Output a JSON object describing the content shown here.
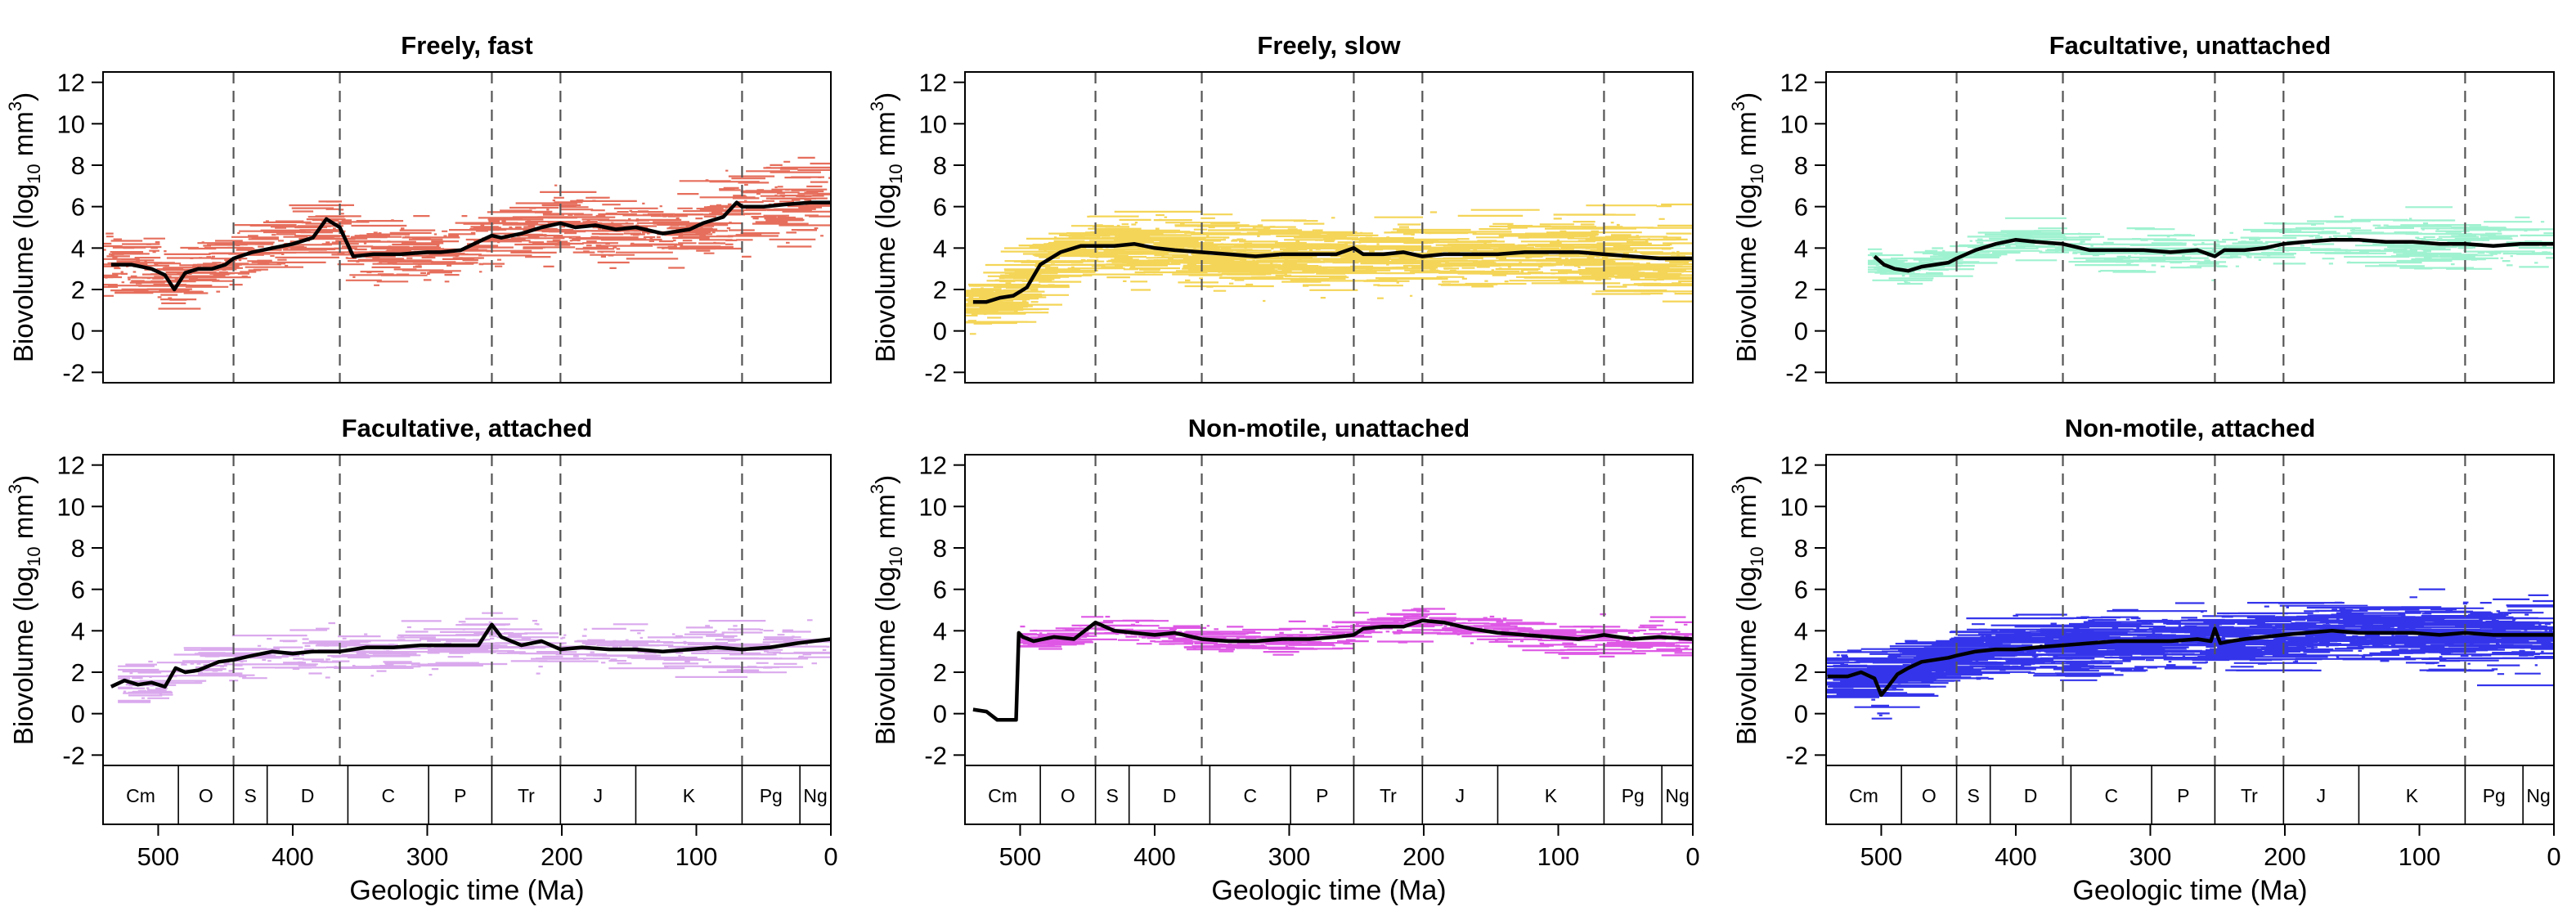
{
  "panels": [
    {
      "title": "Freely, fast",
      "color": "#E2553F"
    },
    {
      "title": "Freely, slow",
      "color": "#F2CE3A"
    },
    {
      "title": "Facultative, unattached",
      "color": "#8EF0C8"
    },
    {
      "title": "Facultative, attached",
      "color": "#D49AEA"
    },
    {
      "title": "Non-motile, unattached",
      "color": "#D83BE0"
    },
    {
      "title": "Non-motile, attached",
      "color": "#1010E8"
    }
  ],
  "ylabel_main": "Biovolume (log",
  "ylabel_sub": "10",
  "ylabel_unit": " mm",
  "ylabel_sup": "3",
  "ylabel_close": ")",
  "xlabel": "Geologic time (Ma)",
  "periods": [
    {
      "label": "Cm",
      "start": 541,
      "end": 485
    },
    {
      "label": "O",
      "start": 485,
      "end": 444
    },
    {
      "label": "S",
      "start": 444,
      "end": 419
    },
    {
      "label": "D",
      "start": 419,
      "end": 359
    },
    {
      "label": "C",
      "start": 359,
      "end": 299
    },
    {
      "label": "P",
      "start": 299,
      "end": 252
    },
    {
      "label": "Tr",
      "start": 252,
      "end": 201
    },
    {
      "label": "J",
      "start": 201,
      "end": 145
    },
    {
      "label": "K",
      "start": 145,
      "end": 66
    },
    {
      "label": "Pg",
      "start": 66,
      "end": 23
    },
    {
      "label": "Ng",
      "start": 23,
      "end": 0
    }
  ],
  "chart_data": [
    {
      "type": "line",
      "title": "Freely, fast",
      "xlabel": "Geologic time (Ma)",
      "ylabel": "Biovolume (log10 mm3)",
      "xlim": [
        541,
        0
      ],
      "ylim": [
        -2.5,
        12.5
      ],
      "yticks": [
        -2,
        0,
        2,
        4,
        6,
        8,
        10,
        12
      ],
      "xticks": [
        500,
        400,
        300,
        200,
        100,
        0
      ],
      "mass_extinctions": [
        444,
        365,
        252,
        201,
        66
      ],
      "series": [
        {
          "x": [
            535,
            520,
            505,
            495,
            488,
            480,
            470,
            460,
            450,
            444,
            430,
            415,
            400,
            385,
            375,
            365,
            355,
            340,
            320,
            300,
            290,
            275,
            262,
            252,
            245,
            230,
            215,
            201,
            190,
            175,
            160,
            145,
            125,
            105,
            95,
            80,
            70,
            66,
            50,
            35,
            15,
            0
          ],
          "y": [
            3.2,
            3.2,
            3.0,
            2.7,
            2.0,
            2.8,
            3.0,
            3.0,
            3.2,
            3.5,
            3.8,
            4.0,
            4.2,
            4.5,
            5.4,
            5.0,
            3.6,
            3.7,
            3.7,
            3.8,
            3.8,
            3.9,
            4.3,
            4.6,
            4.5,
            4.7,
            5.0,
            5.2,
            5.0,
            5.1,
            4.9,
            5.0,
            4.7,
            4.9,
            5.2,
            5.5,
            6.2,
            6.0,
            6.0,
            6.1,
            6.2,
            6.2
          ]
        }
      ]
    },
    {
      "type": "line",
      "title": "Freely, slow",
      "xlabel": "Geologic time (Ma)",
      "ylabel": "Biovolume (log10 mm3)",
      "xlim": [
        541,
        0
      ],
      "ylim": [
        -2.5,
        12.5
      ],
      "yticks": [
        -2,
        0,
        2,
        4,
        6,
        8,
        10,
        12
      ],
      "xticks": [
        500,
        400,
        300,
        200,
        100,
        0
      ],
      "mass_extinctions": [
        444,
        365,
        252,
        201,
        66
      ],
      "series": [
        {
          "x": [
            535,
            525,
            515,
            505,
            495,
            485,
            470,
            455,
            444,
            430,
            415,
            400,
            385,
            365,
            345,
            325,
            305,
            285,
            265,
            252,
            245,
            230,
            215,
            201,
            185,
            165,
            145,
            125,
            105,
            85,
            66,
            45,
            25,
            0
          ],
          "y": [
            1.4,
            1.4,
            1.6,
            1.7,
            2.1,
            3.2,
            3.8,
            4.1,
            4.1,
            4.1,
            4.2,
            4.0,
            3.9,
            3.8,
            3.7,
            3.6,
            3.7,
            3.7,
            3.7,
            4.0,
            3.7,
            3.7,
            3.8,
            3.6,
            3.7,
            3.7,
            3.7,
            3.8,
            3.8,
            3.8,
            3.7,
            3.6,
            3.5,
            3.5
          ]
        }
      ]
    },
    {
      "type": "line",
      "title": "Facultative, unattached",
      "xlabel": "Geologic time (Ma)",
      "ylabel": "Biovolume (log10 mm3)",
      "xlim": [
        541,
        0
      ],
      "ylim": [
        -2.5,
        12.5
      ],
      "yticks": [
        -2,
        0,
        2,
        4,
        6,
        8,
        10,
        12
      ],
      "xticks": [
        500,
        400,
        300,
        200,
        100,
        0
      ],
      "mass_extinctions": [
        444,
        365,
        252,
        201,
        66
      ],
      "series": [
        {
          "x": [
            505,
            498,
            490,
            480,
            470,
            460,
            450,
            444,
            430,
            415,
            400,
            385,
            365,
            345,
            325,
            305,
            285,
            265,
            252,
            245,
            230,
            215,
            201,
            185,
            165,
            145,
            125,
            105,
            85,
            66,
            45,
            25,
            0
          ],
          "y": [
            3.6,
            3.2,
            3.0,
            2.9,
            3.1,
            3.2,
            3.3,
            3.5,
            3.9,
            4.2,
            4.4,
            4.3,
            4.2,
            3.9,
            3.9,
            3.9,
            3.8,
            3.9,
            3.6,
            3.9,
            3.9,
            4.0,
            4.2,
            4.3,
            4.4,
            4.4,
            4.3,
            4.3,
            4.2,
            4.2,
            4.1,
            4.2,
            4.2
          ]
        }
      ]
    },
    {
      "type": "line",
      "title": "Facultative, attached",
      "xlabel": "Geologic time (Ma)",
      "ylabel": "Biovolume (log10 mm3)",
      "xlim": [
        541,
        0
      ],
      "ylim": [
        -2.5,
        12.5
      ],
      "yticks": [
        -2,
        0,
        2,
        4,
        6,
        8,
        10,
        12
      ],
      "xticks": [
        500,
        400,
        300,
        200,
        100,
        0
      ],
      "mass_extinctions": [
        444,
        365,
        252,
        201,
        66
      ],
      "series": [
        {
          "x": [
            535,
            525,
            515,
            505,
            495,
            487,
            480,
            470,
            455,
            444,
            430,
            415,
            400,
            385,
            365,
            345,
            325,
            305,
            285,
            262,
            252,
            245,
            230,
            215,
            201,
            185,
            165,
            145,
            125,
            105,
            85,
            66,
            45,
            25,
            0
          ],
          "y": [
            1.3,
            1.6,
            1.4,
            1.5,
            1.3,
            2.2,
            2.0,
            2.1,
            2.5,
            2.6,
            2.8,
            3.0,
            2.9,
            3.0,
            3.0,
            3.2,
            3.2,
            3.3,
            3.3,
            3.3,
            4.3,
            3.7,
            3.3,
            3.5,
            3.1,
            3.2,
            3.1,
            3.1,
            3.0,
            3.1,
            3.2,
            3.1,
            3.2,
            3.4,
            3.6
          ]
        }
      ]
    },
    {
      "type": "line",
      "title": "Non-motile, unattached",
      "xlabel": "Geologic time (Ma)",
      "ylabel": "Biovolume (log10 mm3)",
      "xlim": [
        541,
        0
      ],
      "ylim": [
        -2.5,
        12.5
      ],
      "yticks": [
        -2,
        0,
        2,
        4,
        6,
        8,
        10,
        12
      ],
      "xticks": [
        500,
        400,
        300,
        200,
        100,
        0
      ],
      "mass_extinctions": [
        444,
        365,
        252,
        201,
        66
      ],
      "series": [
        {
          "x": [
            535,
            525,
            517,
            508,
            503,
            501,
            498,
            490,
            475,
            460,
            450,
            444,
            430,
            415,
            400,
            385,
            365,
            345,
            325,
            305,
            285,
            265,
            252,
            245,
            230,
            215,
            201,
            185,
            165,
            145,
            125,
            105,
            85,
            66,
            45,
            25,
            0
          ],
          "y": [
            0.2,
            0.1,
            -0.3,
            -0.3,
            -0.3,
            3.9,
            3.7,
            3.5,
            3.7,
            3.6,
            4.1,
            4.4,
            4.0,
            3.9,
            3.8,
            3.9,
            3.6,
            3.5,
            3.5,
            3.6,
            3.6,
            3.7,
            3.8,
            4.1,
            4.2,
            4.2,
            4.5,
            4.4,
            4.1,
            3.9,
            3.8,
            3.7,
            3.6,
            3.8,
            3.6,
            3.7,
            3.6
          ]
        }
      ]
    },
    {
      "type": "line",
      "title": "Non-motile, attached",
      "xlabel": "Geologic time (Ma)",
      "ylabel": "Biovolume (log10 mm3)",
      "xlim": [
        541,
        0
      ],
      "ylim": [
        -2.5,
        12.5
      ],
      "yticks": [
        -2,
        0,
        2,
        4,
        6,
        8,
        10,
        12
      ],
      "xticks": [
        500,
        400,
        300,
        200,
        100,
        0
      ],
      "mass_extinctions": [
        444,
        365,
        252,
        201,
        66
      ],
      "series": [
        {
          "x": [
            540,
            525,
            515,
            505,
            500,
            495,
            488,
            480,
            470,
            460,
            450,
            444,
            430,
            415,
            400,
            385,
            365,
            345,
            325,
            305,
            285,
            265,
            255,
            252,
            248,
            240,
            230,
            215,
            201,
            185,
            165,
            145,
            125,
            105,
            85,
            66,
            45,
            25,
            0
          ],
          "y": [
            1.8,
            1.8,
            2.0,
            1.7,
            0.9,
            1.3,
            1.9,
            2.2,
            2.5,
            2.6,
            2.7,
            2.8,
            3.0,
            3.1,
            3.1,
            3.2,
            3.3,
            3.4,
            3.5,
            3.5,
            3.5,
            3.6,
            3.5,
            4.1,
            3.4,
            3.5,
            3.6,
            3.7,
            3.8,
            3.9,
            4.0,
            3.9,
            3.9,
            3.9,
            3.8,
            3.9,
            3.8,
            3.8,
            3.8
          ]
        }
      ]
    }
  ]
}
